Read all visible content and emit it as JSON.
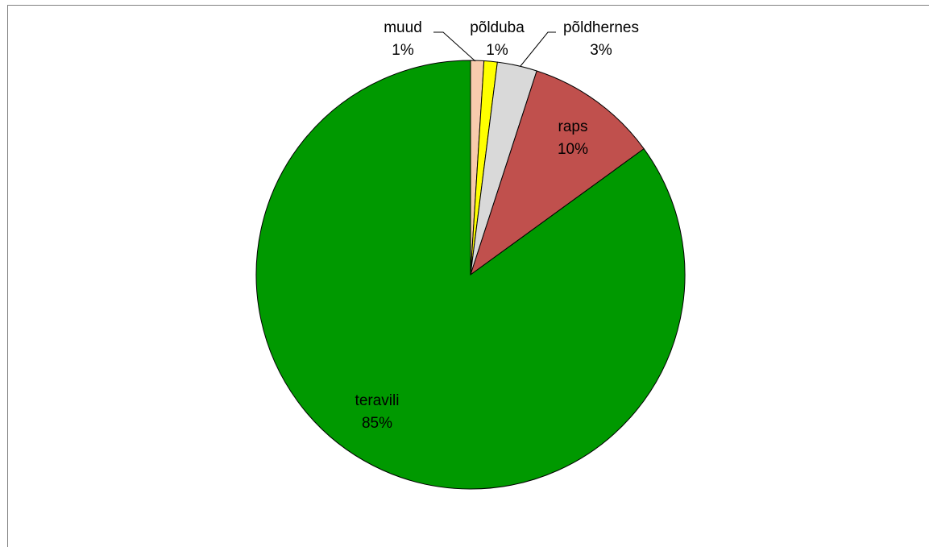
{
  "chart_data": {
    "type": "pie",
    "title": "",
    "slices": [
      {
        "label": "muud",
        "value": 1,
        "percent_label": "1%",
        "color": "#F8CBAD"
      },
      {
        "label": "põlduba",
        "value": 1,
        "percent_label": "1%",
        "color": "#FFFF00"
      },
      {
        "label": "põldhernes",
        "value": 3,
        "percent_label": "3%",
        "color": "#D9D9D9"
      },
      {
        "label": "raps",
        "value": 10,
        "percent_label": "10%",
        "color": "#C0504D"
      },
      {
        "label": "teravili",
        "value": 85,
        "percent_label": "85%",
        "color": "#009900"
      }
    ],
    "legend": "none",
    "data_labels": "category name and percentage"
  }
}
